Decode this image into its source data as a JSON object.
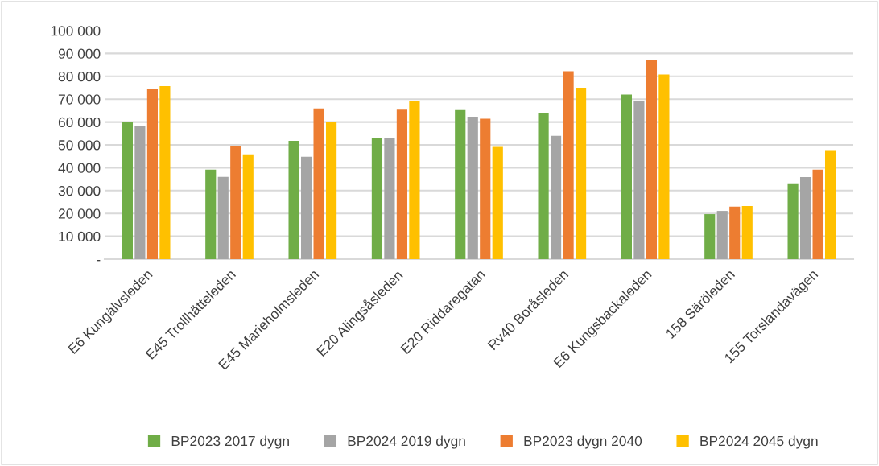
{
  "chart_data": {
    "type": "bar",
    "categories": [
      "E6 Kungälvsleden",
      "E45 Trollhätteleden",
      "E45 Marieholmsleden",
      "E20 Alingsåsleden",
      "E20 Riddaregatan",
      "Rv40 Boråsleden",
      "E6 Kungsbackaleden",
      "158 Säröleden",
      "155 Torslandavägen"
    ],
    "series": [
      {
        "name": "BP2023 2017 dygn",
        "color": "#70ad47",
        "values": [
          60100,
          39200,
          51800,
          53200,
          65200,
          63900,
          72000,
          19700,
          33200
        ]
      },
      {
        "name": "BP2024 2019 dygn",
        "color": "#a5a5a5",
        "values": [
          58100,
          36000,
          44800,
          53100,
          62300,
          54000,
          69100,
          21100,
          35900
        ]
      },
      {
        "name": "BP2023 dygn 2040",
        "color": "#ed7d31",
        "values": [
          74600,
          49400,
          65900,
          65400,
          61400,
          82200,
          87300,
          23000,
          39200
        ]
      },
      {
        "name": "BP2024 2045 dygn",
        "color": "#ffc000",
        "values": [
          75700,
          45900,
          60000,
          69000,
          49100,
          75000,
          80800,
          23200,
          47700
        ]
      }
    ],
    "ylim": [
      0,
      100000
    ],
    "yticks": [
      {
        "value": 0,
        "label": "-"
      },
      {
        "value": 10000,
        "label": "10 000"
      },
      {
        "value": 20000,
        "label": "20 000"
      },
      {
        "value": 30000,
        "label": "30 000"
      },
      {
        "value": 40000,
        "label": "40 000"
      },
      {
        "value": 50000,
        "label": "50 000"
      },
      {
        "value": 60000,
        "label": "60 000"
      },
      {
        "value": 70000,
        "label": "70 000"
      },
      {
        "value": 80000,
        "label": "80 000"
      },
      {
        "value": 90000,
        "label": "90 000"
      },
      {
        "value": 100000,
        "label": "100 000"
      }
    ],
    "grid": "y",
    "legend": "bottom"
  }
}
